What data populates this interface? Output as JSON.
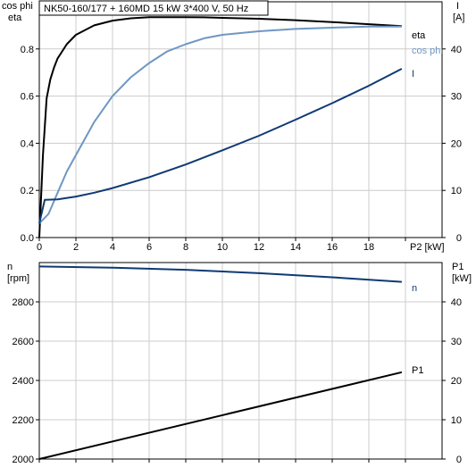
{
  "title": "NK50-160/177 + 160MD   15 kW   3*400 V, 50 Hz",
  "colors": {
    "eta": "#000000",
    "cosphi": "#6f97c3",
    "current": "#0e3a73",
    "speed": "#0e3a73",
    "p1": "#000000",
    "grid": "#cccccc"
  },
  "chart_data": [
    {
      "type": "line",
      "xlabel": "P2 [kW]",
      "ylabel_left": [
        "cos phi",
        "eta"
      ],
      "ylabel_right": [
        "I",
        "[A]"
      ],
      "xlim": [
        0,
        22
      ],
      "ylim_left": [
        0,
        1.0
      ],
      "ylim_right": [
        0,
        50
      ],
      "x_ticks": [
        "0",
        "2",
        "4",
        "6",
        "8",
        "10",
        "12",
        "14",
        "16",
        "18"
      ],
      "y_ticks_left": [
        "0.0",
        "0.2",
        "0.4",
        "0.6",
        "0.8"
      ],
      "y_ticks_right": [
        "0",
        "10",
        "20",
        "30",
        "40"
      ],
      "grid": true,
      "series": [
        {
          "name": "eta",
          "axis": "left",
          "x": [
            0,
            0.2,
            0.4,
            0.6,
            0.8,
            1.0,
            1.5,
            2,
            3,
            4,
            5,
            6,
            7,
            8,
            9,
            10,
            12,
            14,
            16,
            18,
            19.8
          ],
          "y": [
            0.0,
            0.35,
            0.59,
            0.67,
            0.72,
            0.76,
            0.82,
            0.86,
            0.9,
            0.92,
            0.93,
            0.935,
            0.935,
            0.935,
            0.934,
            0.932,
            0.928,
            0.922,
            0.914,
            0.905,
            0.897
          ]
        },
        {
          "name": "cos phi",
          "axis": "left",
          "x": [
            0,
            0.5,
            1,
            1.5,
            2,
            3,
            4,
            5,
            6,
            7,
            8,
            9,
            10,
            12,
            14,
            16,
            18,
            19.8
          ],
          "y": [
            0.06,
            0.1,
            0.19,
            0.28,
            0.35,
            0.49,
            0.6,
            0.68,
            0.74,
            0.79,
            0.82,
            0.845,
            0.86,
            0.875,
            0.885,
            0.89,
            0.895,
            0.895
          ]
        },
        {
          "name": "I",
          "axis": "right",
          "x": [
            0,
            0.3,
            1,
            2,
            3,
            4,
            6,
            8,
            10,
            12,
            14,
            16,
            18,
            19.8
          ],
          "y": [
            3,
            8,
            8.1,
            8.7,
            9.5,
            10.5,
            12.8,
            15.5,
            18.5,
            21.6,
            25,
            28.5,
            32.2,
            35.8
          ]
        }
      ]
    },
    {
      "type": "line",
      "xlabel": "",
      "ylabel_left": [
        "n",
        "[rpm]"
      ],
      "ylabel_right": [
        "P1",
        "[kW]"
      ],
      "xlim": [
        0,
        22
      ],
      "ylim_left": [
        2000,
        3000
      ],
      "ylim_right": [
        0,
        50
      ],
      "y_ticks_left": [
        "2000",
        "2200",
        "2400",
        "2600",
        "2800"
      ],
      "y_ticks_right": [
        "0",
        "10",
        "20",
        "30",
        "40"
      ],
      "grid": true,
      "series": [
        {
          "name": "n",
          "axis": "left",
          "x": [
            0,
            4,
            8,
            12,
            16,
            19.8
          ],
          "y": [
            2980,
            2974,
            2963,
            2946,
            2925,
            2902
          ]
        },
        {
          "name": "P1",
          "axis": "right",
          "x": [
            0,
            19.8
          ],
          "y": [
            0,
            22.1
          ]
        }
      ]
    }
  ]
}
